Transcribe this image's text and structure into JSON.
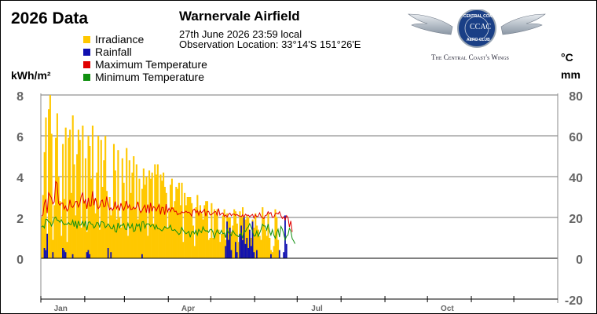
{
  "header": {
    "year_title": "2026 Data",
    "station": "Warnervale Airfield",
    "datetime": "27th June 2026  23:59 local",
    "location": "Observation Location: 33°14'S 151°26'E"
  },
  "logo": {
    "ring_top": "CENTRAL COAST",
    "ring_bottom": "AERO CLUB",
    "monogram": "CCAC",
    "tagline": "The Central Coast's Wings"
  },
  "legend": [
    {
      "label": "Irradiance",
      "color": "#ffc800"
    },
    {
      "label": "Rainfall",
      "color": "#1010b0"
    },
    {
      "label": "Maximum Temperature",
      "color": "#e00000"
    },
    {
      "label": "Minimum Temperature",
      "color": "#109010"
    }
  ],
  "axes": {
    "left_unit": "kWh/m²",
    "right_unit_top": "°C",
    "right_unit_bottom": "mm",
    "left_ticks": [
      "8",
      "6",
      "4",
      "2",
      "0"
    ],
    "right_ticks": [
      "80",
      "60",
      "40",
      "20",
      "0",
      "-20"
    ],
    "months": [
      "Jan",
      "Apr",
      "Jul",
      "Oct"
    ]
  },
  "chart_data": {
    "type": "bar",
    "title": "2026 Data",
    "x_start": "2026-01-01",
    "x_end": "2026-12-31",
    "ylim_left": [
      0,
      8
    ],
    "ylim_right": [
      -20,
      80
    ],
    "grid": true,
    "series": [
      {
        "name": "Irradiance",
        "axis": "left",
        "kind": "bar",
        "values": [
          2.0,
          3.1,
          5.2,
          6.9,
          1.2,
          7.3,
          8.0,
          6.1,
          0.9,
          2.6,
          5.9,
          7.1,
          4.0,
          2.8,
          1.1,
          5.6,
          2.9,
          6.4,
          0.8,
          5.9,
          6.3,
          3.2,
          7.0,
          4.6,
          2.1,
          5.1,
          6.3,
          5.8,
          1.5,
          6.5,
          2.8,
          4.9,
          1.3,
          6.0,
          5.5,
          3.9,
          6.5,
          2.9,
          2.2,
          4.2,
          6.0,
          1.4,
          5.8,
          3.5,
          4.8,
          6.0,
          3.3,
          1.6,
          3.0,
          2.1,
          2.4,
          5.6,
          4.3,
          1.9,
          5.3,
          2.0,
          1.5,
          4.9,
          3.7,
          2.8,
          5.4,
          1.1,
          4.8,
          3.2,
          4.2,
          5.0,
          2.4,
          4.6,
          1.9,
          3.9,
          2.3,
          3.4,
          4.4,
          3.6,
          4.0,
          1.1,
          4.3,
          3.9,
          4.2,
          1.7,
          4.6,
          4.1,
          4.6,
          2.6,
          4.1,
          3.8,
          4.2,
          3.5,
          3.2,
          1.5,
          2.3,
          3.6,
          3.9,
          2.5,
          2.8,
          3.5,
          3.4,
          3.7,
          2.6,
          3.7,
          0.8,
          3.2,
          2.6,
          3.0,
          3.0,
          3.0,
          2.7,
          1.6,
          0.6,
          2.5,
          3.1,
          2.3,
          2.6,
          2.2,
          1.9,
          2.6,
          2.8,
          2.8,
          0.9,
          1.0,
          2.7,
          1.0,
          2.4,
          2.2,
          2.4,
          1.4,
          0.8,
          1.2,
          2.1,
          2.4,
          0.9,
          2.2,
          2.0,
          2.0,
          1.3,
          1.6,
          2.4,
          2.3,
          1.7,
          0.8,
          2.3,
          2.0,
          2.5,
          1.1,
          1.9,
          2.1,
          2.0,
          0.9,
          1.0,
          1.9,
          1.5,
          2.2,
          1.6,
          1.4,
          1.1,
          0.9,
          2.5,
          2.0,
          1.4,
          1.1,
          2.2,
          1.0,
          0.4,
          0.3,
          0.6,
          2.4,
          2.0,
          0.9
        ]
      },
      {
        "name": "Rainfall",
        "axis": "right",
        "kind": "bar",
        "values": [
          0,
          0,
          5,
          4,
          12,
          0,
          0,
          0,
          3,
          0,
          0,
          0,
          0,
          0,
          0,
          5,
          4,
          3,
          0,
          0,
          0,
          0,
          2,
          0,
          0,
          0,
          0,
          0,
          0,
          0,
          0,
          0,
          3,
          4,
          2,
          0,
          0,
          0,
          0,
          0,
          0,
          0,
          0,
          0,
          0,
          0,
          0,
          5,
          0,
          3,
          0,
          0,
          0,
          0,
          0,
          0,
          0,
          0,
          0,
          0,
          0,
          0,
          0,
          0,
          0,
          0,
          0,
          0,
          0,
          0,
          0,
          2,
          0,
          0,
          0,
          0,
          0,
          0,
          0,
          0,
          0,
          0,
          0,
          0,
          0,
          0,
          0,
          0,
          0,
          0,
          0,
          0,
          0,
          0,
          0,
          0,
          0,
          0,
          0,
          0,
          0,
          0,
          0,
          0,
          0,
          0,
          0,
          0,
          0,
          0,
          0,
          0,
          0,
          0,
          0,
          0,
          0,
          0,
          0,
          0,
          0,
          0,
          0,
          0,
          0,
          0,
          0,
          0,
          0,
          0,
          6,
          18,
          9,
          15,
          4,
          0,
          0,
          8,
          3,
          0,
          12,
          16,
          9,
          20,
          7,
          10,
          5,
          14,
          6,
          18,
          3,
          0,
          4,
          0,
          0,
          0,
          0,
          0,
          0,
          0,
          0,
          0,
          2,
          0,
          0,
          0,
          0,
          0,
          4,
          0,
          0,
          3,
          21,
          7,
          0
        ]
      },
      {
        "name": "Maximum Temperature",
        "axis": "right",
        "kind": "line",
        "values": [
          20.6,
          21.4,
          27.0,
          28.9,
          22.1,
          32.0,
          30.8,
          29.6,
          26.6,
          27.6,
          37.6,
          36.7,
          27.0,
          26.0,
          27.0,
          27.0,
          24.1,
          25.6,
          23.2,
          24.4,
          28.6,
          25.4,
          24.9,
          26.2,
          27.8,
          27.9,
          25.1,
          26.7,
          30.3,
          32.2,
          26.8,
          28.9,
          24.2,
          29.6,
          25.6,
          25.7,
          32.8,
          26.0,
          29.5,
          26.9,
          24.3,
          25.1,
          28.0,
          28.5,
          25.2,
          25.6,
          30.2,
          26.6,
          23.8,
          24.7,
          23.5,
          24.6,
          27.8,
          24.3,
          26.0,
          23.3,
          27.0,
          24.8,
          23.5,
          25.5,
          28.1,
          24.6,
          26.2,
          23.9,
          24.0,
          25.1,
          24.1,
          25.1,
          27.7,
          24.2,
          22.4,
          23.4,
          24.9,
          26.0,
          22.4,
          26.3,
          22.1,
          27.2,
          23.0,
          25.3,
          24.8,
          23.2,
          24.8,
          26.3,
          21.5,
          25.0,
          24.8,
          21.3,
          26.5,
          22.7,
          24.5,
          22.9,
          24.8,
          24.2,
          22.8,
          23.1,
          21.3,
          21.8,
          21.7,
          22.8,
          22.3,
          22.5,
          23.1,
          22.4,
          22.6,
          21.9,
          20.6,
          23.6,
          24.1,
          22.3,
          23.4,
          21.1,
          23.3,
          22.3,
          23.1,
          24.0,
          20.6,
          23.0,
          23.0,
          21.2,
          21.4,
          22.0,
          22.7,
          22.9,
          21.1,
          24.4,
          21.1,
          21.9,
          22.2,
          20.5,
          21.2,
          20.2,
          21.5,
          22.1,
          20.8,
          21.6,
          21.6,
          21.0,
          21.5,
          20.8,
          20.7,
          20.4,
          21.3,
          20.2,
          21.6,
          21.0,
          21.2,
          20.4,
          21.0,
          21.5,
          19.7,
          21.4,
          20.4,
          20.6,
          22.2,
          20.5,
          19.8,
          19.5,
          21.0,
          21.1,
          22.8,
          21.8,
          22.4,
          20.0,
          20.1,
          21.9,
          22.2,
          21.7,
          22.8,
          20.9,
          19.5,
          20.4,
          18.8,
          20.9,
          20.0,
          15.3,
          18.3,
          12.9
        ]
      },
      {
        "name": "Minimum Temperature",
        "axis": "right",
        "kind": "line",
        "values": [
          15.3,
          15.9,
          14.8,
          19.1,
          19.0,
          17.8,
          17.6,
          15.8,
          17.4,
          19.7,
          20.2,
          18.7,
          18.5,
          17.6,
          18.9,
          17.4,
          16.5,
          16.8,
          16.6,
          17.5,
          16.6,
          16.5,
          18.6,
          15.5,
          18.3,
          14.5,
          18.3,
          16.1,
          16.5,
          18.1,
          15.7,
          18.3,
          13.7,
          17.6,
          17.9,
          16.8,
          16.6,
          14.8,
          15.7,
          17.5,
          17.3,
          15.3,
          17.9,
          17.9,
          17.3,
          15.0,
          15.7,
          16.8,
          15.9,
          14.5,
          14.4,
          16.2,
          13.1,
          12.8,
          17.3,
          14.9,
          16.2,
          16.1,
          17.0,
          14.3,
          14.0,
          17.1,
          14.9,
          15.0,
          16.8,
          13.1,
          13.5,
          16.8,
          15.7,
          16.7,
          13.0,
          17.8,
          18.0,
          14.8,
          16.8,
          16.9,
          16.8,
          15.5,
          16.5,
          16.3,
          14.3,
          16.3,
          14.5,
          14.5,
          14.0,
          13.4,
          14.2,
          15.5,
          14.9,
          14.7,
          15.0,
          16.2,
          13.8,
          13.6,
          14.1,
          13.3,
          12.5,
          11.6,
          12.4,
          15.1,
          13.6,
          12.8,
          12.0,
          12.5,
          13.2,
          10.3,
          12.9,
          13.2,
          12.0,
          13.7,
          11.4,
          14.2,
          13.2,
          12.6,
          15.4,
          13.9,
          13.3,
          13.5,
          12.7,
          14.1,
          14.2,
          13.0,
          9.9,
          12.1,
          13.9,
          12.5,
          12.0,
          13.7,
          12.0,
          12.4,
          10.1,
          14.1,
          12.5,
          12.0,
          11.1,
          13.6,
          12.5,
          11.5,
          11.2,
          10.6,
          11.4,
          12.3,
          9.7,
          13.9,
          13.1,
          14.6,
          15.4,
          17.0,
          15.2,
          13.3,
          10.8,
          11.0,
          13.4,
          10.7,
          12.3,
          14.1,
          16.7,
          15.8,
          15.8,
          13.8,
          16.8,
          13.4,
          11.3,
          14.0,
          11.3,
          9.8,
          12.3,
          14.2,
          10.4,
          15.6,
          14.3,
          11.9,
          9.0,
          10.8,
          11.4,
          14.7,
          13.4,
          9.6,
          8.5,
          7.1
        ]
      }
    ]
  }
}
